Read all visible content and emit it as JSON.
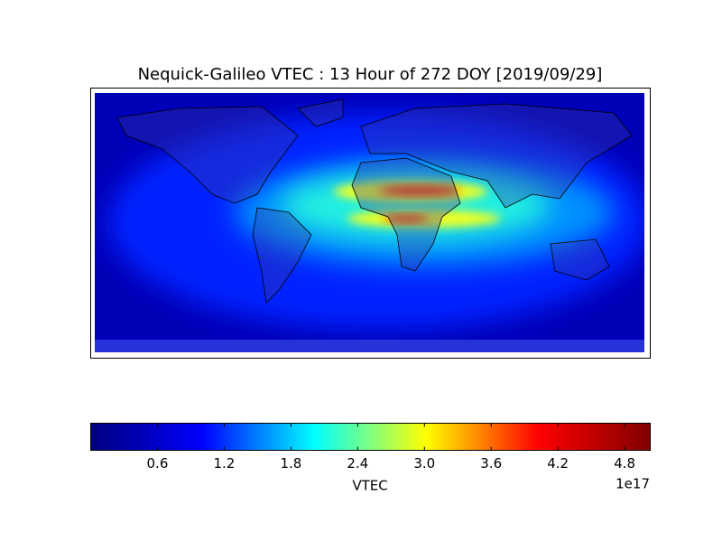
{
  "chart_data": {
    "type": "colorbar",
    "title": "Nequick-Galileo VTEC : 13 Hour of 272 DOY [2019/09/29]",
    "colorbar_label": "VTEC",
    "offset_label": "1e17",
    "clim": [
      0,
      5.03
    ],
    "cticks": [
      0.6,
      1.2,
      1.8,
      2.4,
      {
        "value": 3,
        "label": "3.0"
      },
      3.6,
      4.2,
      4.8
    ],
    "colormap": [
      "#000080",
      "#0000ff",
      "#00ffff",
      "#ffff00",
      "#ff0000",
      "#800000"
    ]
  }
}
